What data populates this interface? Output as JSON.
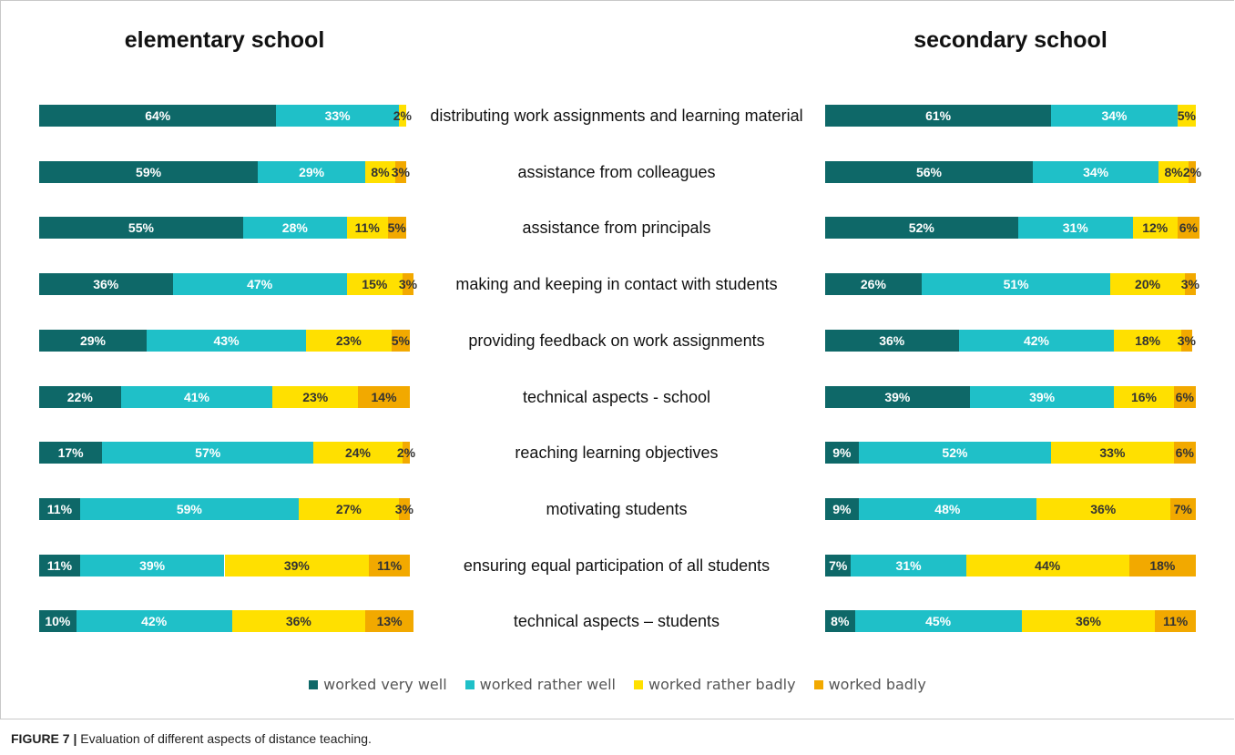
{
  "caption_label": "FIGURE 7 |",
  "caption": "Evaluation of different aspects of distance teaching.",
  "chart_data": {
    "type": "bar",
    "stacked": true,
    "orientation": "horizontal",
    "xlim": [
      0,
      100
    ],
    "categories": [
      "distributing work assignments and learning material",
      "assistance from colleagues",
      "assistance from principals",
      "making and keeping in contact with students",
      "providing feedback on work assignments",
      "technical aspects - school",
      "reaching learning objectives",
      "motivating students",
      "ensuring equal participation of all students",
      "technical aspects – students"
    ],
    "series": [
      {
        "name": "worked very well",
        "color": "#0e6868"
      },
      {
        "name": "worked rather well",
        "color": "#1fc0c8"
      },
      {
        "name": "worked rather badly",
        "color": "#ffe000"
      },
      {
        "name": "worked badly",
        "color": "#f2a900"
      }
    ],
    "panels": [
      {
        "title": "elementary school",
        "series": [
          {
            "values": [
              64,
              59,
              55,
              36,
              29,
              22,
              17,
              11,
              11,
              10
            ],
            "value_labels": [
              "64%",
              "59%",
              "55%",
              "36%",
              "29%",
              "22%",
              "17%",
              "11%",
              "11%",
              "10%"
            ]
          },
          {
            "values": [
              33,
              29,
              28,
              47,
              43,
              41,
              57,
              59,
              39,
              42
            ],
            "value_labels": [
              "33%",
              "29%",
              "28%",
              "47%",
              "43%",
              "41%",
              "57%",
              "59%",
              "39%",
              "42%"
            ]
          },
          {
            "values": [
              2,
              8,
              11,
              15,
              23,
              23,
              24,
              27,
              39,
              36
            ],
            "value_labels": [
              "2%",
              "8%",
              "11%",
              "15%",
              "23%",
              "23%",
              "24%",
              "27%",
              "39%",
              "36%"
            ]
          },
          {
            "values": [
              null,
              3,
              5,
              3,
              5,
              14,
              2,
              3,
              11,
              13
            ],
            "value_labels": [
              null,
              "3%",
              "5%",
              "3%",
              "5%",
              "14%",
              "2%",
              "3%",
              "11%",
              "13%"
            ]
          }
        ]
      },
      {
        "title": "secondary school",
        "series": [
          {
            "values": [
              61,
              56,
              52,
              26,
              36,
              39,
              9,
              9,
              7,
              8
            ],
            "value_labels": [
              "61%",
              "56%",
              "52%",
              "26%",
              "36%",
              "39%",
              "9%",
              "9%",
              "7%",
              "8%"
            ]
          },
          {
            "values": [
              34,
              34,
              31,
              51,
              42,
              39,
              52,
              48,
              31,
              45
            ],
            "value_labels": [
              "34%",
              "34%",
              "31%",
              "51%",
              "42%",
              "39%",
              "52%",
              "48%",
              "31%",
              "45%"
            ]
          },
          {
            "values": [
              5,
              8,
              12,
              20,
              18,
              16,
              33,
              36,
              44,
              36
            ],
            "value_labels": [
              "5%",
              "8%",
              "12%",
              "20%",
              "18%",
              "16%",
              "33%",
              "36%",
              "44%",
              "36%"
            ]
          },
          {
            "values": [
              null,
              2,
              6,
              3,
              3,
              6,
              6,
              7,
              18,
              11
            ],
            "value_labels": [
              null,
              "2%",
              "6%",
              "3%",
              "3%",
              "6%",
              "6%",
              "7%",
              "18%",
              "11%"
            ]
          }
        ]
      }
    ]
  }
}
